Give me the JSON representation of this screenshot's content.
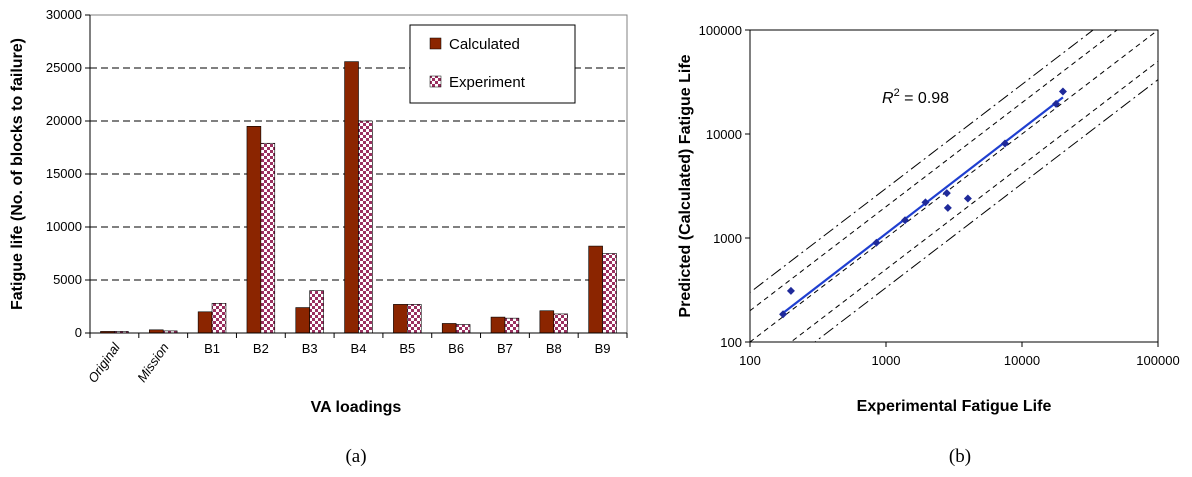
{
  "chart_data": [
    {
      "type": "bar",
      "panel_label": "(a)",
      "xlabel": "VA loadings",
      "ylabel": "Fatigue life (No. of blocks to failure)",
      "ylim": [
        0,
        30000
      ],
      "yticks": [
        "0",
        "5000",
        "10000",
        "15000",
        "20000",
        "25000",
        "30000"
      ],
      "grid": "horizontal dashed",
      "legend_position": "top-right",
      "categories": [
        "Original",
        "Mission",
        "B1",
        "B2",
        "B3",
        "B4",
        "B5",
        "B6",
        "B7",
        "B8",
        "B9"
      ],
      "series": [
        {
          "name": "Calculated",
          "color": "#8B2500",
          "values": [
            150,
            300,
            2000,
            19500,
            2400,
            25600,
            2700,
            900,
            1500,
            2100,
            8200
          ]
        },
        {
          "name": "Experiment",
          "color": "#9B3060",
          "values": [
            150,
            200,
            2800,
            17900,
            4000,
            20000,
            2700,
            800,
            1400,
            1800,
            7500
          ]
        }
      ]
    },
    {
      "type": "scatter",
      "panel_label": "(b)",
      "xlabel": "Experimental Fatigue Life",
      "ylabel": "Predicted (Calculated) Fatigue Life",
      "xscale": "log",
      "yscale": "log",
      "xlim": [
        100,
        100000
      ],
      "ylim": [
        100,
        100000
      ],
      "xticks": [
        "100",
        "1000",
        "10000",
        "100000"
      ],
      "yticks": [
        "100",
        "1000",
        "10000",
        "100000"
      ],
      "annotation": {
        "prefix": "R",
        "sup": "2",
        "suffix": " = 0.98"
      },
      "point_color": "#1F2A9A",
      "fit_color": "#1F3FD0",
      "points": [
        {
          "x": 175,
          "y": 185
        },
        {
          "x": 200,
          "y": 310
        },
        {
          "x": 850,
          "y": 900
        },
        {
          "x": 1380,
          "y": 1480
        },
        {
          "x": 1950,
          "y": 2200
        },
        {
          "x": 2800,
          "y": 2700
        },
        {
          "x": 2850,
          "y": 1950
        },
        {
          "x": 4000,
          "y": 2400
        },
        {
          "x": 7500,
          "y": 8100
        },
        {
          "x": 17800,
          "y": 19500
        },
        {
          "x": 20000,
          "y": 25600
        }
      ],
      "fit_line": [
        {
          "x": 175,
          "y": 190
        },
        {
          "x": 20000,
          "y": 22500
        }
      ],
      "reference_lines": [
        {
          "style": "dashed",
          "factor": 1
        },
        {
          "style": "dashed",
          "factor": 2
        },
        {
          "style": "dashed",
          "factor": 0.5
        },
        {
          "style": "dash-dot",
          "factor": 3
        },
        {
          "style": "dash-dot",
          "factor": 0.3333
        }
      ]
    }
  ]
}
